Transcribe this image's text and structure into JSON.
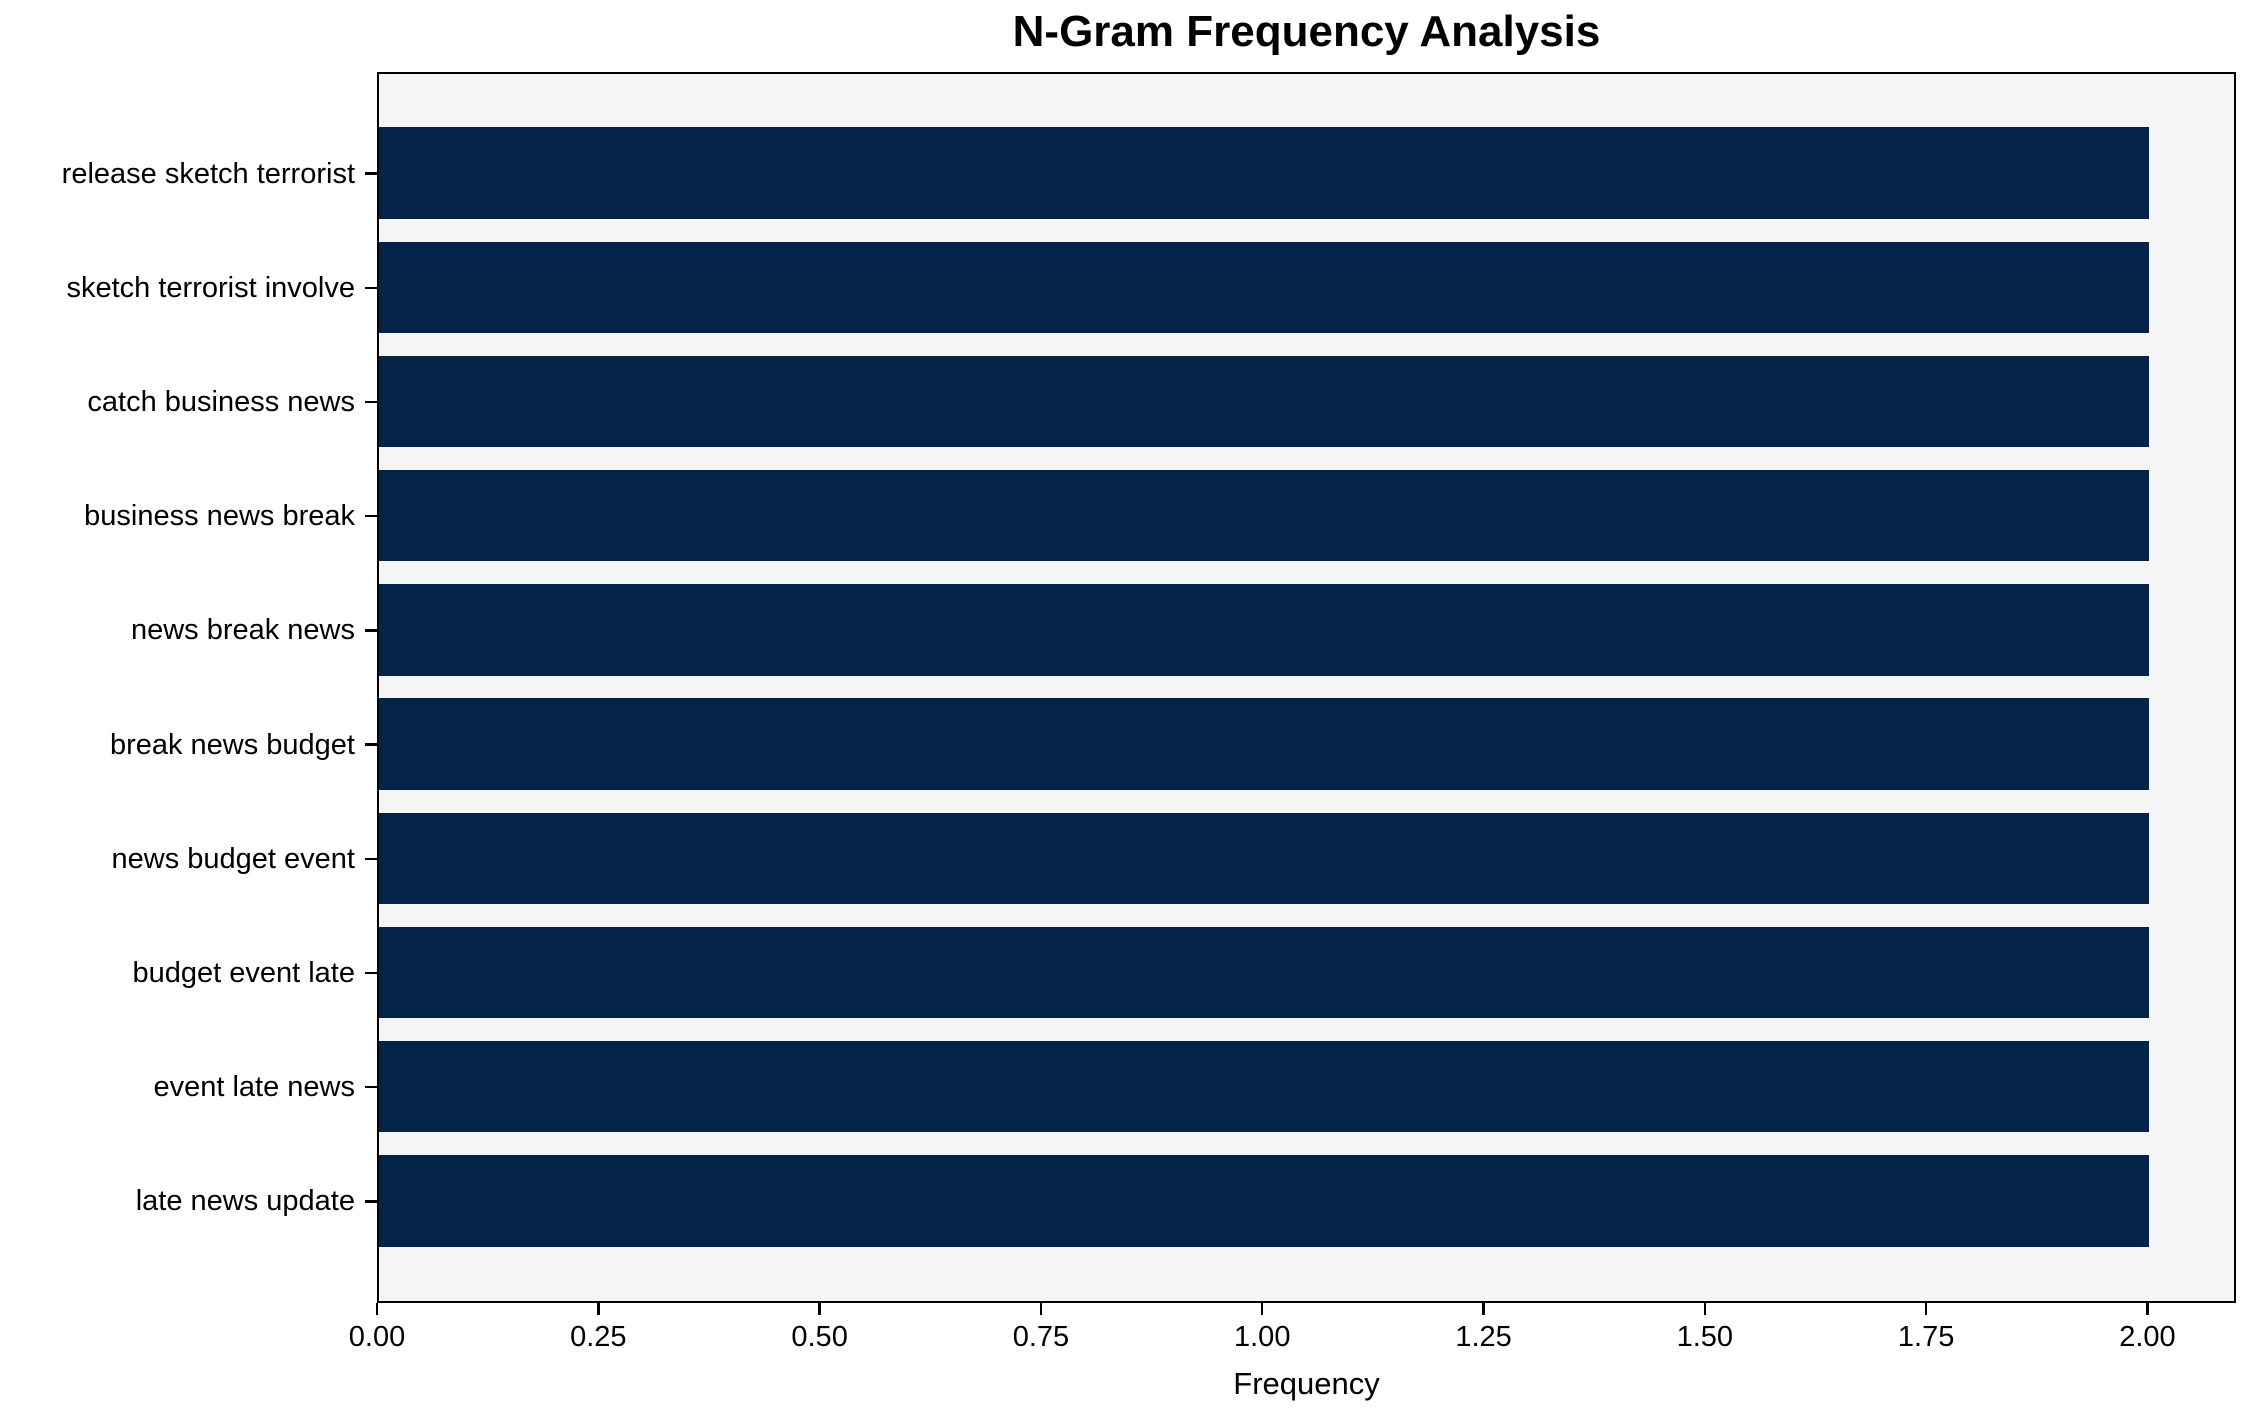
{
  "chart_data": {
    "type": "bar",
    "orientation": "horizontal",
    "title": "N-Gram Frequency Analysis",
    "xlabel": "Frequency",
    "ylabel": "",
    "categories": [
      "release sketch terrorist",
      "sketch terrorist involve",
      "catch business news",
      "business news break",
      "news break news",
      "break news budget",
      "news budget event",
      "budget event late",
      "event late news",
      "late news update"
    ],
    "values": [
      2,
      2,
      2,
      2,
      2,
      2,
      2,
      2,
      2,
      2
    ],
    "xlim": [
      0,
      2.1
    ],
    "xticks": [
      {
        "value": 0.0,
        "label": "0.00"
      },
      {
        "value": 0.25,
        "label": "0.25"
      },
      {
        "value": 0.5,
        "label": "0.50"
      },
      {
        "value": 0.75,
        "label": "0.75"
      },
      {
        "value": 1.0,
        "label": "1.00"
      },
      {
        "value": 1.25,
        "label": "1.25"
      },
      {
        "value": 1.5,
        "label": "1.50"
      },
      {
        "value": 1.75,
        "label": "1.75"
      },
      {
        "value": 2.0,
        "label": "2.00"
      }
    ],
    "grid": false,
    "legend": null,
    "bar_color": "#042348",
    "plot_bg": "#f5f5f6",
    "spine_color": "#000000",
    "text_color": "#000000",
    "bar_fraction": 0.8,
    "axis_margin_units": 0.49
  }
}
